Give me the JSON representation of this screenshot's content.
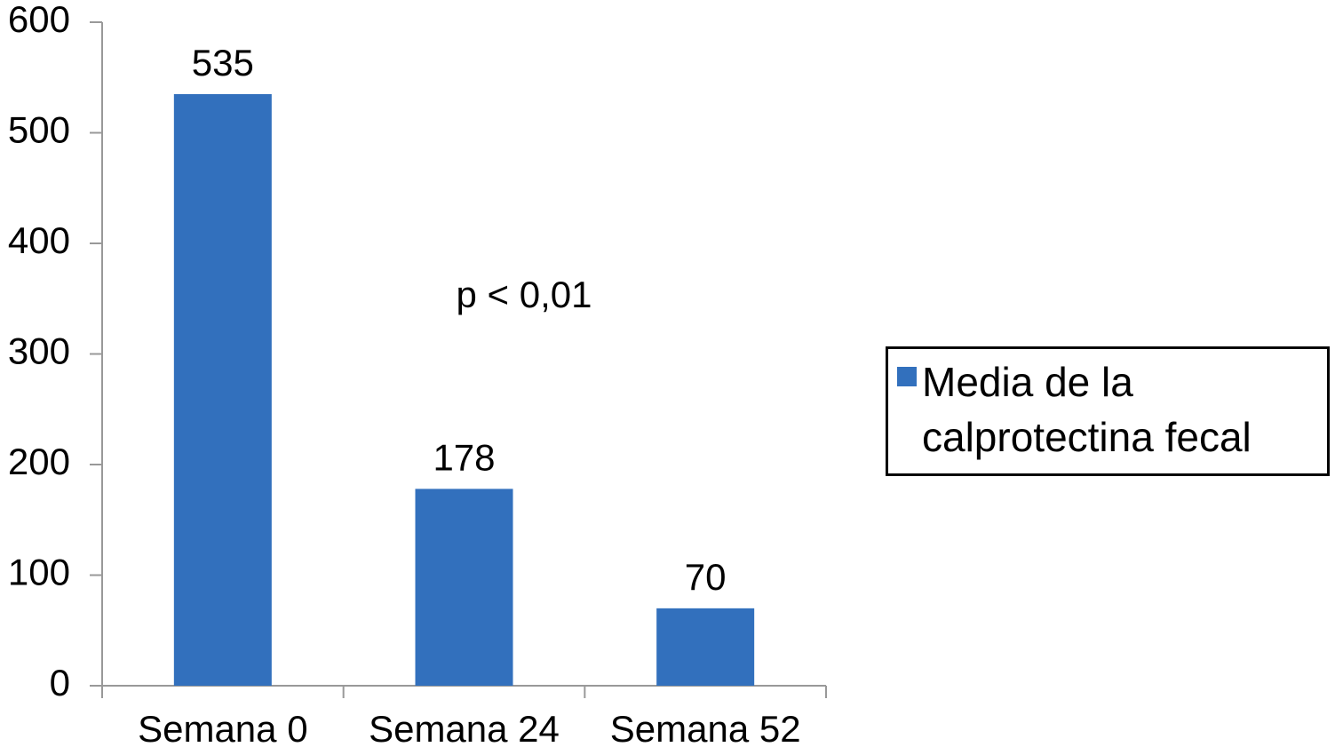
{
  "chart_data": {
    "type": "bar",
    "categories": [
      "Semana 0",
      "Semana 24",
      "Semana 52"
    ],
    "series": [
      {
        "name": "Media de la calprotectina fecal",
        "color": "#3270bd",
        "values": [
          535,
          178,
          70
        ]
      }
    ],
    "ylim": [
      0,
      600
    ],
    "yticks": [
      0,
      100,
      200,
      300,
      400,
      500,
      600
    ],
    "annotation": "p < 0,01",
    "legend": "right"
  }
}
